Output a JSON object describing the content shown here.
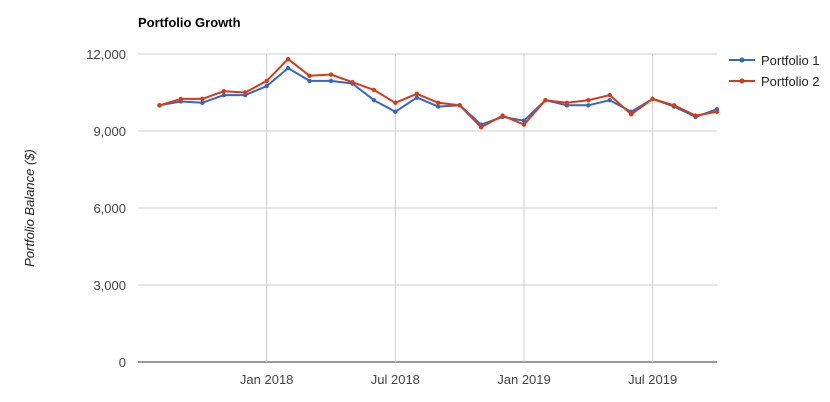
{
  "chart_data": {
    "type": "line",
    "title": "Portfolio Growth",
    "ylabel": "Portfolio Balance ($)",
    "xlabel": "",
    "ylim": [
      0,
      12000
    ],
    "yticks": [
      0,
      3000,
      6000,
      9000,
      12000
    ],
    "ytick_labels": [
      "0",
      "3,000",
      "6,000",
      "9,000",
      "12,000"
    ],
    "x": [
      "2017-08",
      "2017-09",
      "2017-10",
      "2017-11",
      "2017-12",
      "2018-01",
      "2018-02",
      "2018-03",
      "2018-04",
      "2018-05",
      "2018-06",
      "2018-07",
      "2018-08",
      "2018-09",
      "2018-10",
      "2018-11",
      "2018-12",
      "2019-01",
      "2019-02",
      "2019-03",
      "2019-04",
      "2019-05",
      "2019-06",
      "2019-07",
      "2019-08",
      "2019-09",
      "2019-10"
    ],
    "xlim": [
      "2017-07",
      "2019-10"
    ],
    "xticks": [
      "2018-01",
      "2018-07",
      "2019-01",
      "2019-07"
    ],
    "xtick_labels": [
      "Jan 2018",
      "Jul 2018",
      "Jan 2019",
      "Jul 2019"
    ],
    "grid": true,
    "legend": "right",
    "series": [
      {
        "name": "Portfolio 1",
        "color": "#3366cc",
        "values": [
          10000,
          10150,
          10100,
          10400,
          10400,
          10750,
          11450,
          10950,
          10950,
          10850,
          10200,
          9750,
          10300,
          9950,
          10000,
          9250,
          9550,
          9400,
          10200,
          10000,
          10000,
          10200,
          9750,
          10250,
          9950,
          9550,
          9850
        ]
      },
      {
        "name": "Portfolio 2",
        "color": "#dc3912",
        "values": [
          10000,
          10250,
          10250,
          10550,
          10500,
          10950,
          11800,
          11150,
          11200,
          10900,
          10600,
          10100,
          10450,
          10100,
          10000,
          9150,
          9600,
          9250,
          10200,
          10100,
          10200,
          10400,
          9650,
          10250,
          10000,
          9600,
          9750
        ]
      }
    ]
  }
}
